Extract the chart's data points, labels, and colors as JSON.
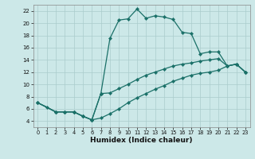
{
  "xlabel": "Humidex (Indice chaleur)",
  "bg_color": "#cce8e8",
  "line_color": "#1a7068",
  "grid_color": "#aacccc",
  "xlim": [
    -0.5,
    23.5
  ],
  "ylim": [
    3.0,
    23.0
  ],
  "xticks": [
    0,
    1,
    2,
    3,
    4,
    5,
    6,
    7,
    8,
    9,
    10,
    11,
    12,
    13,
    14,
    15,
    16,
    17,
    18,
    19,
    20,
    21,
    22,
    23
  ],
  "yticks": [
    4,
    6,
    8,
    10,
    12,
    14,
    16,
    18,
    20,
    22
  ],
  "curve1_x": [
    0,
    1,
    2,
    3,
    4,
    5,
    6,
    7,
    8,
    9,
    10,
    11,
    12,
    13,
    14,
    15,
    16,
    17,
    18,
    19,
    20,
    21,
    22,
    23
  ],
  "curve1_y": [
    7.0,
    6.3,
    5.5,
    5.5,
    5.5,
    4.8,
    4.2,
    8.5,
    17.5,
    20.5,
    20.7,
    22.3,
    20.8,
    21.2,
    21.0,
    20.6,
    18.5,
    18.3,
    15.0,
    15.3,
    15.3,
    13.0,
    13.3,
    12.0
  ],
  "curve2_x": [
    0,
    2,
    3,
    4,
    5,
    6,
    7,
    8,
    9,
    10,
    11,
    12,
    13,
    14,
    15,
    16,
    17,
    18,
    19,
    20,
    21,
    22,
    23
  ],
  "curve2_y": [
    7.0,
    5.5,
    5.5,
    5.5,
    4.8,
    4.2,
    8.5,
    8.6,
    9.3,
    10.0,
    10.8,
    11.5,
    12.0,
    12.5,
    13.0,
    13.3,
    13.5,
    13.8,
    14.0,
    14.2,
    13.0,
    13.3,
    12.0
  ],
  "curve3_x": [
    0,
    2,
    3,
    4,
    5,
    6,
    7,
    8,
    9,
    10,
    11,
    12,
    13,
    14,
    15,
    16,
    17,
    18,
    19,
    20,
    21,
    22,
    23
  ],
  "curve3_y": [
    7.0,
    5.5,
    5.5,
    5.5,
    4.8,
    4.2,
    4.5,
    5.2,
    6.0,
    7.0,
    7.8,
    8.5,
    9.2,
    9.8,
    10.5,
    11.0,
    11.5,
    11.8,
    12.0,
    12.3,
    13.0,
    13.3,
    12.0
  ],
  "marker_x1": [
    0,
    1,
    2,
    3,
    4,
    5,
    6,
    7,
    8,
    9,
    10,
    11,
    12,
    13,
    14,
    15,
    16,
    17,
    18,
    19,
    20,
    21,
    22,
    23
  ],
  "marker_y1": [
    7.0,
    6.3,
    5.5,
    5.5,
    5.5,
    4.8,
    4.2,
    8.5,
    17.5,
    20.5,
    20.7,
    22.3,
    20.8,
    21.2,
    21.0,
    20.6,
    18.5,
    18.3,
    15.0,
    15.3,
    15.3,
    13.0,
    13.3,
    12.0
  ]
}
